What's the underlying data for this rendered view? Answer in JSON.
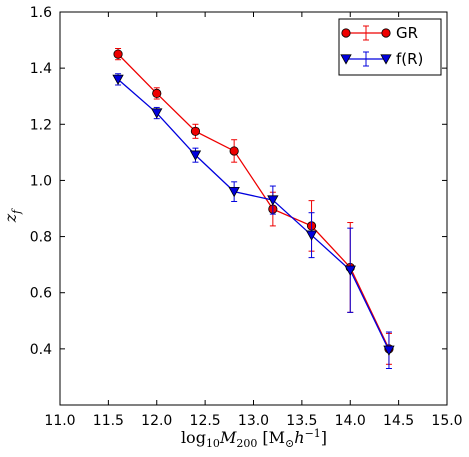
{
  "chart_data": {
    "type": "line",
    "title": "",
    "xlabel_parts": [
      "log",
      "10",
      "M",
      "200",
      " [M",
      "⊙",
      "h",
      "−1",
      "]"
    ],
    "ylabel_parts": [
      "z",
      "f"
    ],
    "xlim": [
      11.0,
      15.0
    ],
    "ylim": [
      0.2,
      1.6
    ],
    "xticks": [
      11.0,
      11.5,
      12.0,
      12.5,
      13.0,
      13.5,
      14.0,
      14.5,
      15.0
    ],
    "yticks": [
      0.4,
      0.6,
      0.8,
      1.0,
      1.2,
      1.4,
      1.6
    ],
    "xtick_labels": [
      "11.0",
      "11.5",
      "12.0",
      "12.5",
      "13.0",
      "13.5",
      "14.0",
      "14.5",
      "15.0"
    ],
    "ytick_labels": [
      "0.4",
      "0.6",
      "0.8",
      "1.0",
      "1.2",
      "1.4",
      "1.6"
    ],
    "grid": false,
    "legend_position": "top-right",
    "series": [
      {
        "name": "GR",
        "color": "#ee0000",
        "marker": "circle",
        "x": [
          11.6,
          12.0,
          12.4,
          12.8,
          13.2,
          13.6,
          14.0,
          14.4
        ],
        "y": [
          1.45,
          1.31,
          1.175,
          1.105,
          0.898,
          0.838,
          0.69,
          0.4
        ],
        "err": [
          0.02,
          0.02,
          0.025,
          0.04,
          0.06,
          0.09,
          0.16,
          0.055
        ]
      },
      {
        "name": "f(R)",
        "color": "#0000dd",
        "marker": "triangle-down",
        "x": [
          11.6,
          12.0,
          12.4,
          12.8,
          13.2,
          13.6,
          14.0,
          14.4
        ],
        "y": [
          1.36,
          1.24,
          1.09,
          0.96,
          0.93,
          0.805,
          0.68,
          0.395
        ],
        "err": [
          0.02,
          0.02,
          0.025,
          0.035,
          0.05,
          0.08,
          0.15,
          0.065
        ]
      }
    ]
  }
}
